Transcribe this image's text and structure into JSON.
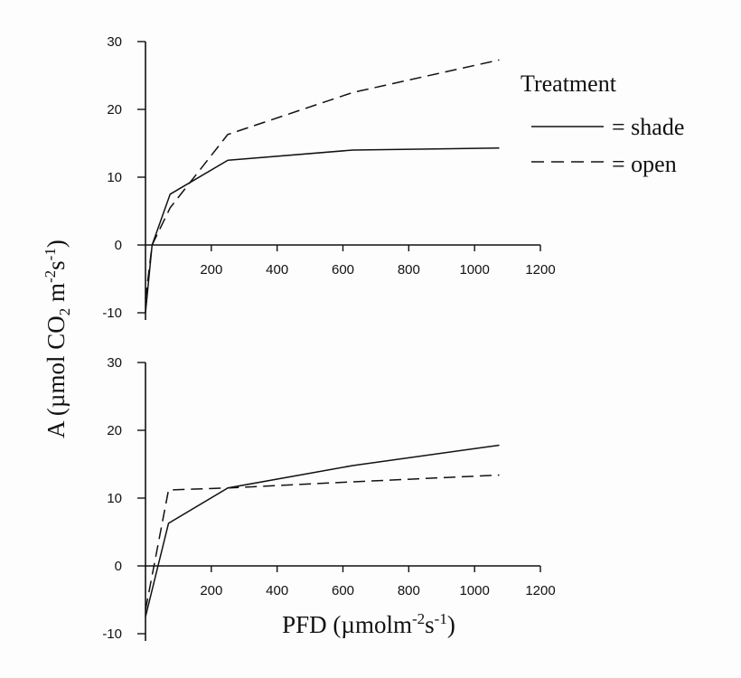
{
  "chart_data": [
    {
      "type": "line",
      "panel": "top",
      "x_ticks": [
        "200",
        "400",
        "600",
        "800",
        "1000",
        "1200"
      ],
      "y_ticks": [
        "-10",
        "0",
        "10",
        "20",
        "30"
      ],
      "xlim": [
        0,
        1200
      ],
      "ylim": [
        -10,
        30
      ],
      "series": [
        {
          "name": "shade",
          "style": "solid",
          "x": [
            0,
            20,
            75,
            250,
            630,
            1075
          ],
          "y": [
            -10,
            0,
            7.5,
            12.5,
            14.0,
            14.3
          ]
        },
        {
          "name": "open",
          "style": "dashed",
          "x": [
            0,
            20,
            75,
            250,
            630,
            1075
          ],
          "y": [
            -8,
            0,
            5.5,
            16.3,
            22.5,
            27.3
          ]
        }
      ]
    },
    {
      "type": "line",
      "panel": "bottom",
      "x_ticks": [
        "200",
        "400",
        "600",
        "800",
        "1000",
        "1200"
      ],
      "y_ticks": [
        "-10",
        "0",
        "10",
        "20",
        "30"
      ],
      "xlim": [
        0,
        1200
      ],
      "ylim": [
        -10,
        30
      ],
      "series": [
        {
          "name": "shade",
          "style": "solid",
          "x": [
            0,
            70,
            250,
            630,
            1075
          ],
          "y": [
            -7.5,
            6.3,
            11.5,
            14.8,
            17.8
          ]
        },
        {
          "name": "open",
          "style": "dashed",
          "x": [
            0,
            70,
            250,
            630,
            1075
          ],
          "y": [
            -6.5,
            11.2,
            11.5,
            12.4,
            13.4
          ]
        }
      ]
    }
  ],
  "shared_ylabel": {
    "main": "A (µmol CO",
    "sub": "2",
    "mid": " m",
    "sup1": "-2",
    "mid2": "s",
    "sup2": "-1",
    "end": ")"
  },
  "shared_xlabel": {
    "main": "PFD (µmolm",
    "sup1": "-2",
    "mid": "s",
    "sup2": "-1",
    "end": ")"
  },
  "legend": {
    "title": "Treatment",
    "items": [
      {
        "label": "= shade",
        "style": "solid"
      },
      {
        "label": "= open",
        "style": "dashed"
      }
    ]
  }
}
